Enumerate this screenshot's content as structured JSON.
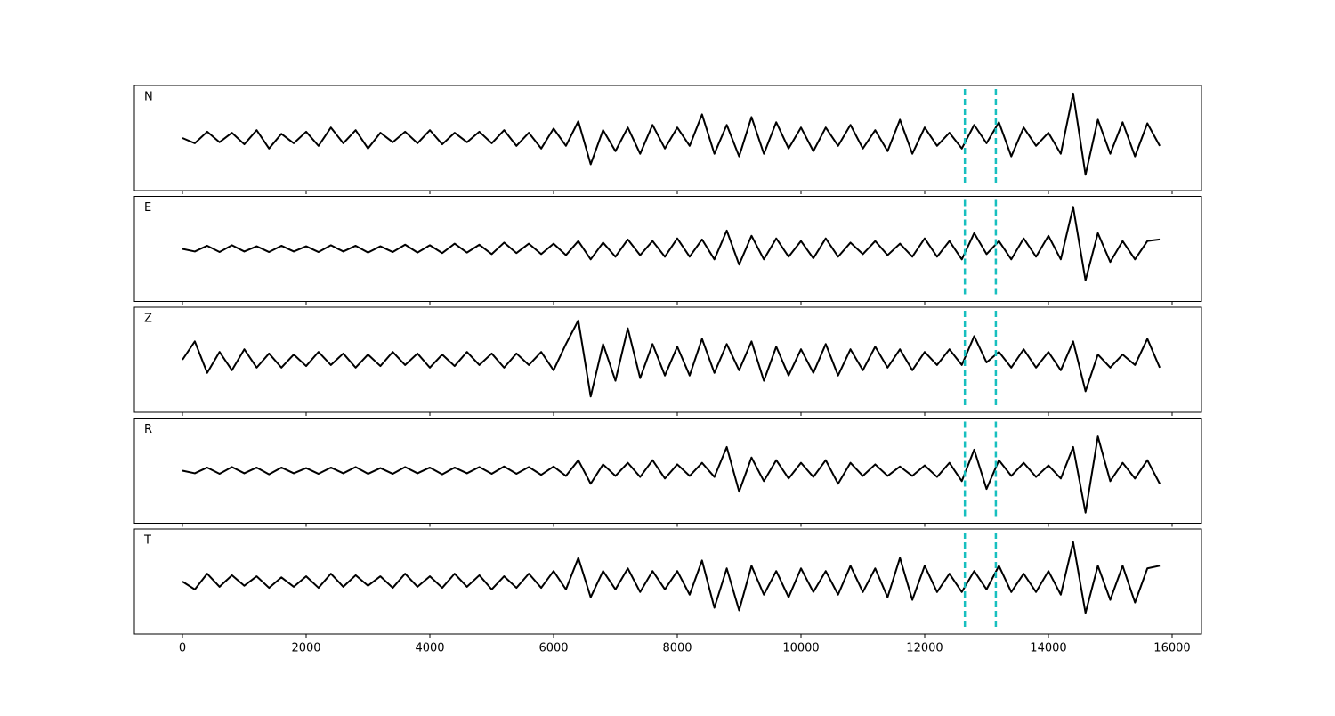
{
  "chart_data": {
    "type": "line",
    "x": [
      0,
      200,
      400,
      600,
      800,
      1000,
      1200,
      1400,
      1600,
      1800,
      2000,
      2200,
      2400,
      2600,
      2800,
      3000,
      3200,
      3400,
      3600,
      3800,
      4000,
      4200,
      4400,
      4600,
      4800,
      5000,
      5200,
      5400,
      5600,
      5800,
      6000,
      6200,
      6400,
      6600,
      6800,
      7000,
      7200,
      7400,
      7600,
      7800,
      8000,
      8200,
      8400,
      8600,
      8800,
      9000,
      9200,
      9400,
      9600,
      9800,
      10000,
      10200,
      10400,
      10600,
      10800,
      11000,
      11200,
      11400,
      11600,
      11800,
      12000,
      12200,
      12400,
      12600,
      12800,
      13000,
      13200,
      13400,
      13600,
      13800,
      14000,
      14200,
      14400,
      14600,
      14800,
      15000,
      15200,
      15400,
      15600,
      15800
    ],
    "series": [
      {
        "name": "N",
        "color": "#000000",
        "values": [
          0.0,
          -0.1,
          0.12,
          -0.08,
          0.1,
          -0.12,
          0.15,
          -0.2,
          0.08,
          -0.1,
          0.12,
          -0.15,
          0.2,
          -0.1,
          0.15,
          -0.2,
          0.1,
          -0.08,
          0.12,
          -0.1,
          0.15,
          -0.12,
          0.1,
          -0.08,
          0.12,
          -0.1,
          0.15,
          -0.15,
          0.1,
          -0.2,
          0.18,
          -0.15,
          0.32,
          -0.5,
          0.15,
          -0.25,
          0.2,
          -0.3,
          0.25,
          -0.2,
          0.2,
          -0.15,
          0.45,
          -0.3,
          0.25,
          -0.35,
          0.4,
          -0.3,
          0.3,
          -0.2,
          0.2,
          -0.25,
          0.2,
          -0.15,
          0.25,
          -0.2,
          0.15,
          -0.25,
          0.35,
          -0.3,
          0.2,
          -0.15,
          0.1,
          -0.2,
          0.25,
          -0.1,
          0.3,
          -0.35,
          0.2,
          -0.15,
          0.1,
          -0.3,
          0.85,
          -0.7,
          0.35,
          -0.3,
          0.3,
          -0.35,
          0.28,
          -0.15
        ]
      },
      {
        "name": "E",
        "color": "#000000",
        "values": [
          0.0,
          -0.05,
          0.06,
          -0.06,
          0.07,
          -0.05,
          0.05,
          -0.06,
          0.06,
          -0.05,
          0.05,
          -0.06,
          0.07,
          -0.05,
          0.06,
          -0.07,
          0.05,
          -0.06,
          0.08,
          -0.07,
          0.07,
          -0.08,
          0.1,
          -0.07,
          0.08,
          -0.1,
          0.12,
          -0.08,
          0.1,
          -0.1,
          0.1,
          -0.12,
          0.15,
          -0.2,
          0.12,
          -0.15,
          0.18,
          -0.12,
          0.15,
          -0.15,
          0.2,
          -0.15,
          0.18,
          -0.2,
          0.35,
          -0.3,
          0.25,
          -0.2,
          0.2,
          -0.15,
          0.15,
          -0.18,
          0.2,
          -0.15,
          0.12,
          -0.1,
          0.15,
          -0.12,
          0.1,
          -0.15,
          0.2,
          -0.15,
          0.15,
          -0.2,
          0.3,
          -0.1,
          0.15,
          -0.2,
          0.2,
          -0.15,
          0.25,
          -0.2,
          0.8,
          -0.6,
          0.3,
          -0.25,
          0.15,
          -0.2,
          0.15,
          0.18
        ]
      },
      {
        "name": "Z",
        "color": "#000000",
        "values": [
          0.0,
          0.35,
          -0.25,
          0.15,
          -0.2,
          0.2,
          -0.15,
          0.12,
          -0.15,
          0.1,
          -0.12,
          0.15,
          -0.1,
          0.12,
          -0.15,
          0.1,
          -0.12,
          0.15,
          -0.1,
          0.12,
          -0.15,
          0.1,
          -0.12,
          0.15,
          -0.1,
          0.12,
          -0.15,
          0.12,
          -0.1,
          0.15,
          -0.2,
          0.3,
          0.75,
          -0.7,
          0.3,
          -0.4,
          0.6,
          -0.35,
          0.3,
          -0.3,
          0.25,
          -0.3,
          0.4,
          -0.25,
          0.3,
          -0.2,
          0.35,
          -0.4,
          0.25,
          -0.3,
          0.2,
          -0.25,
          0.3,
          -0.3,
          0.2,
          -0.2,
          0.25,
          -0.15,
          0.2,
          -0.2,
          0.15,
          -0.1,
          0.2,
          -0.1,
          0.45,
          -0.05,
          0.15,
          -0.15,
          0.2,
          -0.15,
          0.15,
          -0.2,
          0.35,
          -0.6,
          0.1,
          -0.15,
          0.1,
          -0.1,
          0.4,
          -0.15
        ]
      },
      {
        "name": "R",
        "color": "#000000",
        "values": [
          0.0,
          -0.05,
          0.06,
          -0.06,
          0.07,
          -0.05,
          0.06,
          -0.07,
          0.06,
          -0.05,
          0.05,
          -0.06,
          0.06,
          -0.05,
          0.07,
          -0.06,
          0.05,
          -0.06,
          0.07,
          -0.05,
          0.06,
          -0.07,
          0.06,
          -0.05,
          0.07,
          -0.06,
          0.08,
          -0.06,
          0.07,
          -0.08,
          0.08,
          -0.1,
          0.2,
          -0.25,
          0.12,
          -0.1,
          0.15,
          -0.12,
          0.2,
          -0.15,
          0.12,
          -0.1,
          0.15,
          -0.12,
          0.45,
          -0.4,
          0.25,
          -0.2,
          0.2,
          -0.15,
          0.15,
          -0.12,
          0.2,
          -0.25,
          0.15,
          -0.1,
          0.12,
          -0.1,
          0.08,
          -0.1,
          0.1,
          -0.12,
          0.15,
          -0.2,
          0.4,
          -0.35,
          0.2,
          -0.1,
          0.15,
          -0.12,
          0.1,
          -0.15,
          0.45,
          -0.8,
          0.65,
          -0.2,
          0.15,
          -0.15,
          0.2,
          -0.25
        ]
      },
      {
        "name": "T",
        "color": "#000000",
        "values": [
          0.0,
          -0.15,
          0.15,
          -0.1,
          0.12,
          -0.08,
          0.1,
          -0.12,
          0.08,
          -0.1,
          0.1,
          -0.12,
          0.15,
          -0.1,
          0.12,
          -0.08,
          0.1,
          -0.12,
          0.15,
          -0.1,
          0.1,
          -0.12,
          0.15,
          -0.1,
          0.12,
          -0.15,
          0.1,
          -0.12,
          0.15,
          -0.12,
          0.2,
          -0.15,
          0.45,
          -0.3,
          0.2,
          -0.15,
          0.25,
          -0.2,
          0.2,
          -0.15,
          0.2,
          -0.25,
          0.4,
          -0.5,
          0.25,
          -0.55,
          0.3,
          -0.25,
          0.2,
          -0.3,
          0.25,
          -0.2,
          0.2,
          -0.25,
          0.3,
          -0.2,
          0.25,
          -0.3,
          0.45,
          -0.35,
          0.3,
          -0.2,
          0.15,
          -0.2,
          0.2,
          -0.15,
          0.3,
          -0.2,
          0.15,
          -0.2,
          0.2,
          -0.25,
          0.75,
          -0.6,
          0.3,
          -0.35,
          0.3,
          -0.4,
          0.25,
          0.3
        ]
      }
    ],
    "xlim": [
      -777,
      16475
    ],
    "xticks": [
      0,
      2000,
      4000,
      6000,
      8000,
      10000,
      12000,
      14000,
      16000
    ],
    "ylim": [
      -1,
      1
    ],
    "vlines": [
      12650,
      13150
    ],
    "vline_color": "#17bfbf"
  }
}
